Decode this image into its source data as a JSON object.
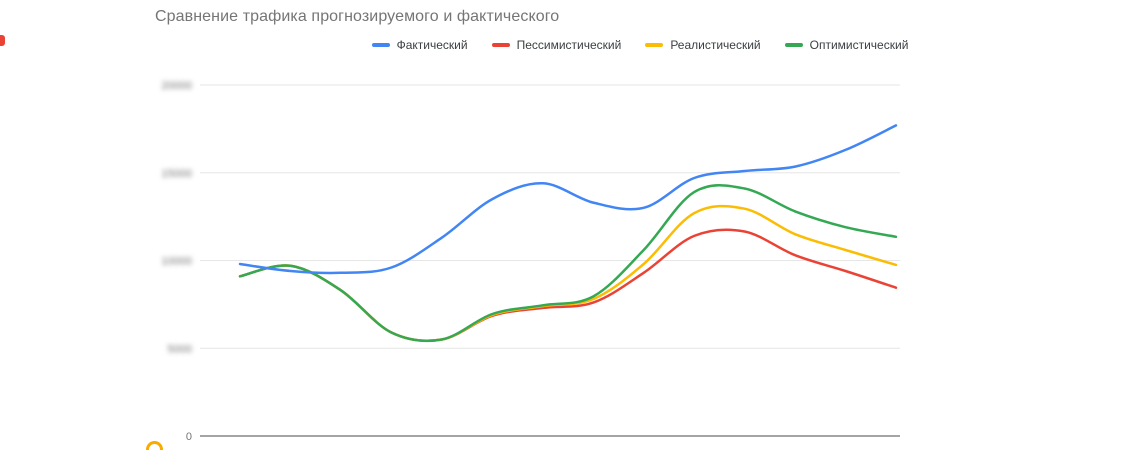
{
  "chart_data": {
    "type": "line",
    "smooth": true,
    "title": "Сравнение трафика прогнозируемого и фактического",
    "legend_position": "top",
    "grid": true,
    "ylim": [
      0,
      20000
    ],
    "x_labels_visible": false,
    "yticks": [
      {
        "label": "20000",
        "value": 20000,
        "blurred": true
      },
      {
        "label": "15000",
        "value": 15000,
        "blurred": true
      },
      {
        "label": "10000",
        "value": 10000,
        "blurred": true
      },
      {
        "label": "5000",
        "value": 5000,
        "blurred": true
      },
      {
        "label": "0",
        "value": 0,
        "blurred": false
      }
    ],
    "series": [
      {
        "name": "Фактический",
        "color": "#4285f4",
        "values": [
          9800,
          9400,
          9300,
          9600,
          11300,
          13500,
          14400,
          13300,
          13000,
          14700,
          15100,
          15350,
          16300,
          17700
        ]
      },
      {
        "name": "Пессимистический",
        "color": "#ea4335",
        "values": [
          9100,
          9700,
          8300,
          5900,
          5500,
          6850,
          7300,
          7600,
          9300,
          11400,
          11650,
          10300,
          9400,
          8450
        ]
      },
      {
        "name": "Реалистический",
        "color": "#fbbc04",
        "values": [
          9100,
          9700,
          8300,
          5900,
          5500,
          6900,
          7400,
          7800,
          9800,
          12700,
          12950,
          11500,
          10600,
          9750
        ]
      },
      {
        "name": "Оптимистический",
        "color": "#34a853",
        "values": [
          9100,
          9700,
          8300,
          5900,
          5500,
          6950,
          7450,
          7950,
          10600,
          13900,
          14100,
          12800,
          11900,
          11350
        ]
      }
    ]
  }
}
